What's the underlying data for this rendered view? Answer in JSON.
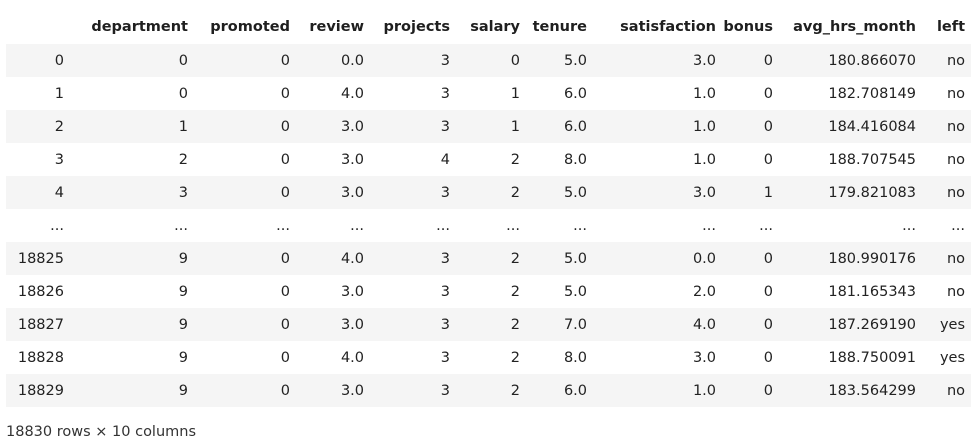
{
  "table": {
    "columns": [
      "department",
      "promoted",
      "review",
      "projects",
      "salary",
      "tenure",
      "satisfaction",
      "bonus",
      "avg_hrs_month",
      "left"
    ],
    "rows": [
      {
        "index": "0",
        "cells": [
          "0",
          "0",
          "0.0",
          "3",
          "0",
          "5.0",
          "3.0",
          "0",
          "180.866070",
          "no"
        ]
      },
      {
        "index": "1",
        "cells": [
          "0",
          "0",
          "4.0",
          "3",
          "1",
          "6.0",
          "1.0",
          "0",
          "182.708149",
          "no"
        ]
      },
      {
        "index": "2",
        "cells": [
          "1",
          "0",
          "3.0",
          "3",
          "1",
          "6.0",
          "1.0",
          "0",
          "184.416084",
          "no"
        ]
      },
      {
        "index": "3",
        "cells": [
          "2",
          "0",
          "3.0",
          "4",
          "2",
          "8.0",
          "1.0",
          "0",
          "188.707545",
          "no"
        ]
      },
      {
        "index": "4",
        "cells": [
          "3",
          "0",
          "3.0",
          "3",
          "2",
          "5.0",
          "3.0",
          "1",
          "179.821083",
          "no"
        ]
      },
      {
        "index": "...",
        "cells": [
          "...",
          "...",
          "...",
          "...",
          "...",
          "...",
          "...",
          "...",
          "...",
          "..."
        ]
      },
      {
        "index": "18825",
        "cells": [
          "9",
          "0",
          "4.0",
          "3",
          "2",
          "5.0",
          "0.0",
          "0",
          "180.990176",
          "no"
        ]
      },
      {
        "index": "18826",
        "cells": [
          "9",
          "0",
          "3.0",
          "3",
          "2",
          "5.0",
          "2.0",
          "0",
          "181.165343",
          "no"
        ]
      },
      {
        "index": "18827",
        "cells": [
          "9",
          "0",
          "3.0",
          "3",
          "2",
          "7.0",
          "4.0",
          "0",
          "187.269190",
          "yes"
        ]
      },
      {
        "index": "18828",
        "cells": [
          "9",
          "0",
          "4.0",
          "3",
          "2",
          "8.0",
          "3.0",
          "0",
          "188.750091",
          "yes"
        ]
      },
      {
        "index": "18829",
        "cells": [
          "9",
          "0",
          "3.0",
          "3",
          "2",
          "6.0",
          "1.0",
          "0",
          "183.564299",
          "no"
        ]
      }
    ]
  },
  "shape_text": "18830 rows × 10 columns"
}
